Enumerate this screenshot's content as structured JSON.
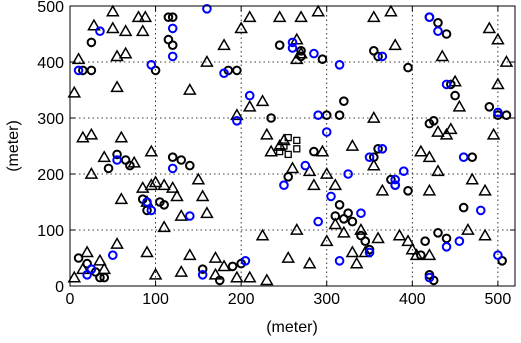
{
  "colors": {
    "black": "#000000",
    "blue": "#0000ff",
    "grid": "#000000",
    "background": "#ffffff"
  },
  "chart_data": {
    "type": "scatter",
    "title": "",
    "xlabel": "(meter)",
    "ylabel": "(meter)",
    "xlim": [
      0,
      520
    ],
    "ylim": [
      0,
      500
    ],
    "x_ticks": [
      0,
      100,
      200,
      300,
      400,
      500
    ],
    "y_ticks": [
      0,
      100,
      200,
      300,
      400,
      500
    ],
    "grid": true,
    "series": [
      {
        "marker": "triangle",
        "color": "#000000",
        "points": [
          [
            28,
            465
          ],
          [
            50,
            490
          ],
          [
            10,
            405
          ],
          [
            5,
            345
          ],
          [
            15,
            265
          ],
          [
            25,
            270
          ],
          [
            25,
            200
          ],
          [
            40,
            230
          ],
          [
            60,
            265
          ],
          [
            55,
            410
          ],
          [
            50,
            460
          ],
          [
            65,
            455
          ],
          [
            65,
            415
          ],
          [
            80,
            480
          ],
          [
            88,
            480
          ],
          [
            85,
            455
          ],
          [
            55,
            355
          ],
          [
            95,
            240
          ],
          [
            110,
            180
          ],
          [
            75,
            220
          ],
          [
            60,
            155
          ],
          [
            90,
            150
          ],
          [
            85,
            175
          ],
          [
            100,
            185
          ],
          [
            95,
            180
          ],
          [
            120,
            175
          ],
          [
            125,
            160
          ],
          [
            130,
            125
          ],
          [
            110,
            105
          ],
          [
            150,
            190
          ],
          [
            155,
            160
          ],
          [
            160,
            130
          ],
          [
            140,
            350
          ],
          [
            160,
            400
          ],
          [
            180,
            430
          ],
          [
            200,
            460
          ],
          [
            210,
            480
          ],
          [
            245,
            480
          ],
          [
            270,
            480
          ],
          [
            290,
            490
          ],
          [
            265,
            440
          ],
          [
            270,
            415
          ],
          [
            265,
            405
          ],
          [
            225,
            330
          ],
          [
            210,
            320
          ],
          [
            195,
            305
          ],
          [
            230,
            270
          ],
          [
            245,
            250
          ],
          [
            250,
            260
          ],
          [
            235,
            240
          ],
          [
            260,
            210
          ],
          [
            280,
            205
          ],
          [
            300,
            200
          ],
          [
            285,
            180
          ],
          [
            310,
            180
          ],
          [
            295,
            240
          ],
          [
            265,
            100
          ],
          [
            255,
            50
          ],
          [
            280,
            40
          ],
          [
            300,
            80
          ],
          [
            310,
            110
          ],
          [
            320,
            95
          ],
          [
            330,
            60
          ],
          [
            335,
            40
          ],
          [
            340,
            100
          ],
          [
            345,
            60
          ],
          [
            355,
            300
          ],
          [
            330,
            250
          ],
          [
            355,
            215
          ],
          [
            365,
            170
          ],
          [
            360,
            85
          ],
          [
            385,
            90
          ],
          [
            395,
            80
          ],
          [
            400,
            65
          ],
          [
            405,
            55
          ],
          [
            420,
            55
          ],
          [
            420,
            170
          ],
          [
            430,
            205
          ],
          [
            430,
            275
          ],
          [
            445,
            280
          ],
          [
            455,
            320
          ],
          [
            440,
            270
          ],
          [
            410,
            240
          ],
          [
            420,
            230
          ],
          [
            355,
            480
          ],
          [
            375,
            490
          ],
          [
            380,
            430
          ],
          [
            435,
            410
          ],
          [
            450,
            365
          ],
          [
            490,
            460
          ],
          [
            500,
            440
          ],
          [
            510,
            400
          ],
          [
            500,
            360
          ],
          [
            495,
            270
          ],
          [
            470,
            190
          ],
          [
            485,
            170
          ],
          [
            465,
            100
          ],
          [
            485,
            90
          ],
          [
            90,
            60
          ],
          [
            100,
            20
          ],
          [
            130,
            25
          ],
          [
            140,
            55
          ],
          [
            170,
            20
          ],
          [
            170,
            50
          ],
          [
            180,
            35
          ],
          [
            195,
            15
          ],
          [
            210,
            15
          ],
          [
            230,
            10
          ],
          [
            225,
            90
          ],
          [
            5,
            15
          ],
          [
            15,
            30
          ],
          [
            20,
            60
          ],
          [
            35,
            45
          ],
          [
            40,
            30
          ],
          [
            55,
            75
          ]
        ]
      },
      {
        "marker": "circle",
        "color": "#000000",
        "points": [
          [
            25,
            435
          ],
          [
            15,
            385
          ],
          [
            25,
            385
          ],
          [
            115,
            480
          ],
          [
            120,
            480
          ],
          [
            115,
            440
          ],
          [
            120,
            430
          ],
          [
            100,
            385
          ],
          [
            185,
            385
          ],
          [
            195,
            385
          ],
          [
            235,
            300
          ],
          [
            245,
            430
          ],
          [
            270,
            420
          ],
          [
            270,
            410
          ],
          [
            295,
            405
          ],
          [
            315,
            305
          ],
          [
            320,
            330
          ],
          [
            300,
            305
          ],
          [
            285,
            240
          ],
          [
            255,
            195
          ],
          [
            310,
            125
          ],
          [
            315,
            145
          ],
          [
            325,
            130
          ],
          [
            320,
            120
          ],
          [
            330,
            115
          ],
          [
            340,
            90
          ],
          [
            345,
            80
          ],
          [
            350,
            65
          ],
          [
            355,
            230
          ],
          [
            360,
            245
          ],
          [
            360,
            410
          ],
          [
            355,
            420
          ],
          [
            395,
            390
          ],
          [
            420,
            480
          ],
          [
            430,
            470
          ],
          [
            440,
            450
          ],
          [
            420,
            290
          ],
          [
            425,
            295
          ],
          [
            445,
            360
          ],
          [
            450,
            340
          ],
          [
            470,
            230
          ],
          [
            500,
            305
          ],
          [
            510,
            305
          ],
          [
            490,
            320
          ],
          [
            460,
            140
          ],
          [
            440,
            85
          ],
          [
            430,
            95
          ],
          [
            415,
            80
          ],
          [
            410,
            55
          ],
          [
            420,
            20
          ],
          [
            425,
            10
          ],
          [
            505,
            45
          ],
          [
            375,
            190
          ],
          [
            380,
            180
          ],
          [
            395,
            170
          ],
          [
            85,
            155
          ],
          [
            90,
            135
          ],
          [
            130,
            225
          ],
          [
            140,
            215
          ],
          [
            120,
            230
          ],
          [
            55,
            235
          ],
          [
            65,
            225
          ],
          [
            45,
            210
          ],
          [
            70,
            215
          ],
          [
            110,
            145
          ],
          [
            105,
            150
          ],
          [
            155,
            30
          ],
          [
            190,
            35
          ],
          [
            200,
            40
          ],
          [
            175,
            10
          ],
          [
            10,
            50
          ],
          [
            20,
            40
          ],
          [
            30,
            25
          ],
          [
            35,
            15
          ],
          [
            40,
            15
          ]
        ]
      },
      {
        "marker": "circle",
        "color": "#0000ff",
        "points": [
          [
            35,
            455
          ],
          [
            10,
            385
          ],
          [
            120,
            460
          ],
          [
            120,
            410
          ],
          [
            95,
            395
          ],
          [
            160,
            495
          ],
          [
            180,
            380
          ],
          [
            210,
            340
          ],
          [
            195,
            295
          ],
          [
            260,
            425
          ],
          [
            260,
            435
          ],
          [
            285,
            415
          ],
          [
            315,
            395
          ],
          [
            290,
            305
          ],
          [
            300,
            275
          ],
          [
            275,
            215
          ],
          [
            250,
            180
          ],
          [
            290,
            115
          ],
          [
            305,
            160
          ],
          [
            325,
            200
          ],
          [
            340,
            130
          ],
          [
            365,
            410
          ],
          [
            365,
            245
          ],
          [
            350,
            230
          ],
          [
            380,
            180
          ],
          [
            390,
            205
          ],
          [
            430,
            455
          ],
          [
            420,
            480
          ],
          [
            440,
            360
          ],
          [
            460,
            230
          ],
          [
            500,
            310
          ],
          [
            480,
            135
          ],
          [
            455,
            80
          ],
          [
            440,
            70
          ],
          [
            420,
            15
          ],
          [
            500,
            55
          ],
          [
            90,
            150
          ],
          [
            95,
            135
          ],
          [
            120,
            210
          ],
          [
            140,
            125
          ],
          [
            55,
            225
          ],
          [
            50,
            55
          ],
          [
            20,
            20
          ],
          [
            25,
            30
          ],
          [
            155,
            20
          ],
          [
            205,
            45
          ],
          [
            380,
            190
          ],
          [
            350,
            60
          ],
          [
            315,
            45
          ]
        ]
      },
      {
        "marker": "square",
        "color": "#000000",
        "points": [
          [
            255,
            265
          ],
          [
            265,
            260
          ],
          [
            265,
            245
          ],
          [
            250,
            250
          ],
          [
            255,
            235
          ],
          [
            245,
            240
          ]
        ]
      }
    ]
  }
}
